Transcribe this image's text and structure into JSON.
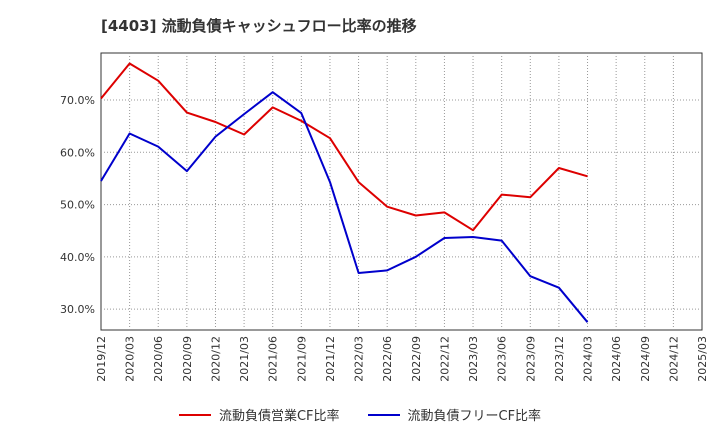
{
  "title": "[4403]  流動負債キャッシュフロー比率の推移",
  "chart_data": {
    "type": "line",
    "x": [
      "2019/12",
      "2020/03",
      "2020/06",
      "2020/09",
      "2020/12",
      "2021/03",
      "2021/06",
      "2021/09",
      "2021/12",
      "2022/03",
      "2022/06",
      "2022/09",
      "2022/12",
      "2023/03",
      "2023/06",
      "2023/09",
      "2023/12",
      "2024/03",
      "2024/06",
      "2024/09",
      "2024/12",
      "2025/03"
    ],
    "ylim": [
      26.0,
      79.0
    ],
    "yticks": [
      30,
      40,
      50,
      60,
      70
    ],
    "ytick_labels": [
      "30.0%",
      "40.0%",
      "50.0%",
      "60.0%",
      "70.0%"
    ],
    "grid": true,
    "legend_position": "bottom",
    "series": [
      {
        "name": "流動負債営業CF比率",
        "color": "#dd0000",
        "values": [
          70.3,
          77.0,
          73.7,
          67.6,
          65.8,
          63.4,
          68.6,
          66.0,
          62.7,
          54.3,
          49.6,
          47.9,
          48.5,
          45.1,
          51.9,
          51.4,
          57.0,
          55.4,
          null,
          null,
          null,
          null
        ]
      },
      {
        "name": "流動負債フリーCF比率",
        "color": "#0000cc",
        "values": [
          54.5,
          63.6,
          61.1,
          56.4,
          63.0,
          67.3,
          71.5,
          67.5,
          54.3,
          36.9,
          37.4,
          40.0,
          43.6,
          43.8,
          43.1,
          36.3,
          34.1,
          27.5,
          null,
          null,
          null,
          null
        ]
      }
    ]
  }
}
